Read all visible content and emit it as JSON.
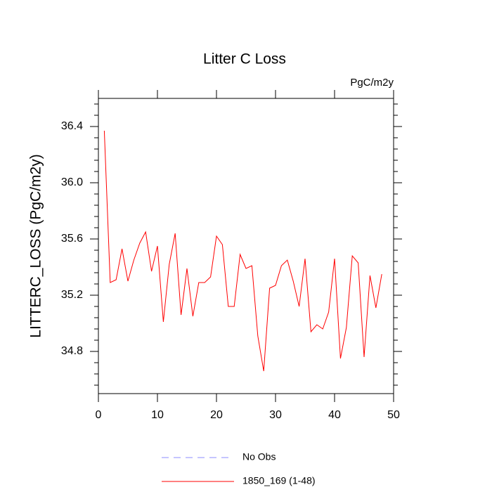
{
  "chart_data": {
    "type": "line",
    "title": "Litter C Loss",
    "subtitle": "PgC/m2y",
    "y_label": "LITTERC_LOSS  (PgC/m2y)",
    "x": [
      1,
      2,
      3,
      4,
      5,
      6,
      7,
      8,
      9,
      10,
      11,
      12,
      13,
      14,
      15,
      16,
      17,
      18,
      19,
      20,
      21,
      22,
      23,
      24,
      25,
      26,
      27,
      28,
      29,
      30,
      31,
      32,
      33,
      34,
      35,
      36,
      37,
      38,
      39,
      40,
      41,
      42,
      43,
      44,
      45,
      46,
      47,
      48
    ],
    "series": [
      {
        "name": "1850_169 (1-48)",
        "color": "#ff0000",
        "values": [
          36.37,
          35.29,
          35.31,
          35.53,
          35.3,
          35.45,
          35.57,
          35.65,
          35.37,
          35.55,
          35.01,
          35.42,
          35.64,
          35.06,
          35.39,
          35.05,
          35.29,
          35.29,
          35.33,
          35.62,
          35.56,
          35.12,
          35.12,
          35.49,
          35.39,
          35.41,
          34.91,
          34.66,
          35.25,
          35.27,
          35.41,
          35.45,
          35.3,
          35.12,
          35.46,
          34.94,
          34.99,
          34.96,
          35.08,
          35.46,
          34.75,
          34.97,
          35.48,
          35.43,
          34.76,
          35.34,
          35.11,
          35.35
        ]
      }
    ],
    "extra_legend": [
      {
        "name": "No Obs",
        "color": "#8c8cff",
        "style": "dashed"
      }
    ],
    "xlim": [
      0,
      50
    ],
    "xticks": [
      0,
      10,
      20,
      30,
      40,
      50
    ],
    "ylim": [
      34.5,
      36.6
    ],
    "yticks": [
      {
        "value": 34.8,
        "label": "34.8"
      },
      {
        "value": 35.2,
        "label": "35.2"
      },
      {
        "value": 35.6,
        "label": "35.6"
      },
      {
        "value": 36.0,
        "label": "36.0"
      },
      {
        "value": 36.4,
        "label": "36.4"
      }
    ],
    "yminorticks": [
      34.56,
      34.64,
      34.72,
      34.88,
      34.96,
      35.04,
      35.12,
      35.28,
      35.36,
      35.44,
      35.52,
      35.68,
      35.76,
      35.84,
      35.92,
      36.08,
      36.16,
      36.24,
      36.32,
      36.48,
      36.56
    ]
  }
}
